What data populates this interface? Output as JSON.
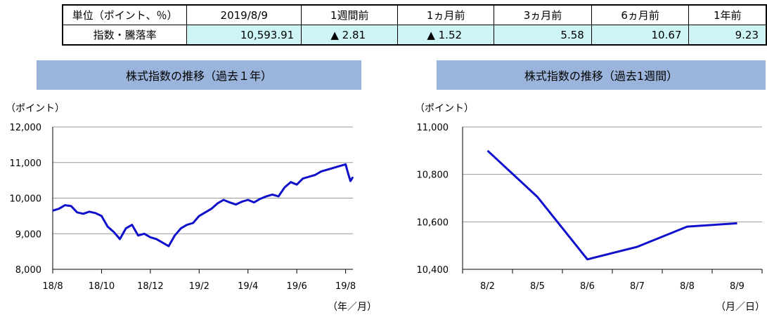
{
  "summary": {
    "headers": [
      "単位（ポイント、％）",
      "2019/8/9",
      "1週間前",
      "1ヵ月前",
      "3ヵ月前",
      "6ヵ月前",
      "1年前"
    ],
    "row_label": "指数・騰落率",
    "values": [
      "10,593.91",
      "▲ 2.81",
      "▲ 1.52",
      "5.58",
      "10.67",
      "9.23"
    ],
    "colors": {
      "cell_bg": "#cdf5f5",
      "title_bg": "#9bb4dc",
      "line": "#1010cc"
    }
  },
  "chart_data": [
    {
      "type": "line",
      "title": "株式指数の推移（過去１年）",
      "ylabel": "（ポイント）",
      "xlabel": "（年／月）",
      "ylim": [
        8000,
        12000
      ],
      "yticks": [
        8000,
        9000,
        10000,
        11000,
        12000
      ],
      "yticklabels": [
        "8,000",
        "9,000",
        "10,000",
        "11,000",
        "12,000"
      ],
      "xlim": [
        0,
        12.3
      ],
      "xticks": [
        0,
        2,
        4,
        6,
        8,
        10,
        12
      ],
      "xticklabels": [
        "18/8",
        "18/10",
        "18/12",
        "19/2",
        "19/4",
        "19/6",
        "19/8"
      ],
      "grid": true,
      "series": [
        {
          "x": [
            0,
            0.25,
            0.5,
            0.75,
            1,
            1.25,
            1.5,
            1.75,
            2,
            2.25,
            2.5,
            2.75,
            3,
            3.25,
            3.5,
            3.75,
            4,
            4.25,
            4.5,
            4.75,
            5,
            5.25,
            5.5,
            5.75,
            6,
            6.25,
            6.5,
            6.75,
            7,
            7.25,
            7.5,
            7.75,
            8,
            8.25,
            8.5,
            8.75,
            9,
            9.25,
            9.5,
            9.75,
            10,
            10.25,
            10.5,
            10.75,
            11,
            11.25,
            11.5,
            11.75,
            12,
            12.1,
            12.2,
            12.3
          ],
          "values": [
            9650,
            9700,
            9800,
            9780,
            9600,
            9560,
            9620,
            9580,
            9500,
            9200,
            9050,
            8850,
            9150,
            9250,
            8950,
            9000,
            8900,
            8850,
            8750,
            8650,
            8950,
            9150,
            9250,
            9300,
            9500,
            9600,
            9700,
            9850,
            9950,
            9880,
            9820,
            9900,
            9950,
            9880,
            9980,
            10050,
            10100,
            10050,
            10300,
            10450,
            10380,
            10550,
            10600,
            10650,
            10750,
            10800,
            10850,
            10900,
            10950,
            10700,
            10480,
            10594
          ]
        }
      ]
    },
    {
      "type": "line",
      "title": "株式指数の推移（過去1週間）",
      "ylabel": "（ポイント）",
      "xlabel": "（月／日）",
      "categories": [
        "8/2",
        "8/5",
        "8/6",
        "8/7",
        "8/8",
        "8/9"
      ],
      "ylim": [
        10400,
        11000
      ],
      "yticks": [
        10400,
        10600,
        10800,
        11000
      ],
      "yticklabels": [
        "10,400",
        "10,600",
        "10,800",
        "11,000"
      ],
      "grid": true,
      "series": [
        {
          "values": [
            10900,
            10705,
            10442,
            10495,
            10580,
            10594
          ]
        }
      ]
    }
  ]
}
